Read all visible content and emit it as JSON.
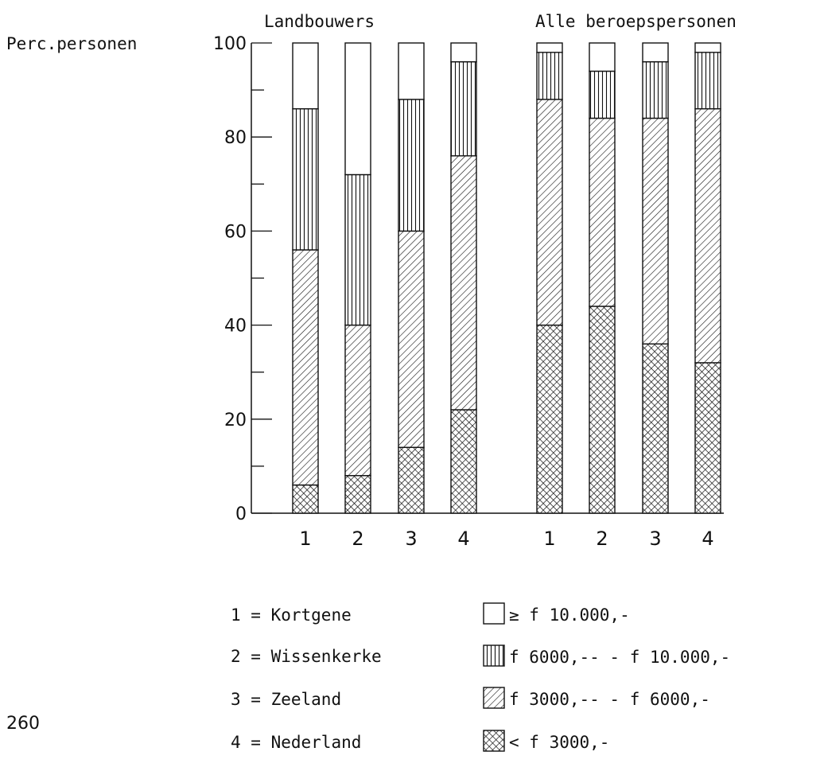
{
  "page_number": "260",
  "legend": {
    "locations": [
      {
        "code": "1",
        "name": "Kortgene"
      },
      {
        "code": "2",
        "name": "Wissenkerke"
      },
      {
        "code": "3",
        "name": "Zeeland"
      },
      {
        "code": "4",
        "name": "Nederland"
      }
    ],
    "income_classes": [
      {
        "pattern": "blank",
        "label": "≥ f 10.000,-"
      },
      {
        "pattern": "vertical",
        "label": "f 6000,-- - f 10.000,-"
      },
      {
        "pattern": "diagonal",
        "label": "f 3000,-- - f  6000,-"
      },
      {
        "pattern": "crosshatch",
        "label": "< f 3000,-"
      }
    ]
  },
  "chart_data": {
    "type": "bar",
    "stacked": true,
    "ylabel": "Perc.personen",
    "ylim": [
      0,
      100
    ],
    "yticks": [
      0,
      20,
      40,
      60,
      80,
      100
    ],
    "ytick_labels": [
      "0",
      "20",
      "40",
      "60",
      "80",
      "100"
    ],
    "groups": [
      {
        "title": "Landbouwers",
        "categories": [
          "1",
          "2",
          "3",
          "4"
        ]
      },
      {
        "title": "Alle beroepspersonen",
        "categories": [
          "1",
          "2",
          "3",
          "4"
        ]
      }
    ],
    "series": [
      {
        "name": "< f 3000,-",
        "pattern": "crosshatch",
        "values": [
          6,
          8,
          14,
          22,
          40,
          44,
          36,
          32
        ]
      },
      {
        "name": "f 3000,-- - f  6000,-",
        "pattern": "diagonal",
        "values": [
          50,
          32,
          46,
          54,
          48,
          40,
          48,
          54
        ]
      },
      {
        "name": "f 6000,-- - f 10.000,-",
        "pattern": "vertical",
        "values": [
          30,
          32,
          28,
          20,
          10,
          10,
          12,
          12
        ]
      },
      {
        "name": "≥ f 10.000,-",
        "pattern": "blank",
        "values": [
          14,
          28,
          12,
          4,
          2,
          6,
          4,
          2
        ]
      }
    ],
    "grid": false,
    "legend_position": "bottom"
  }
}
